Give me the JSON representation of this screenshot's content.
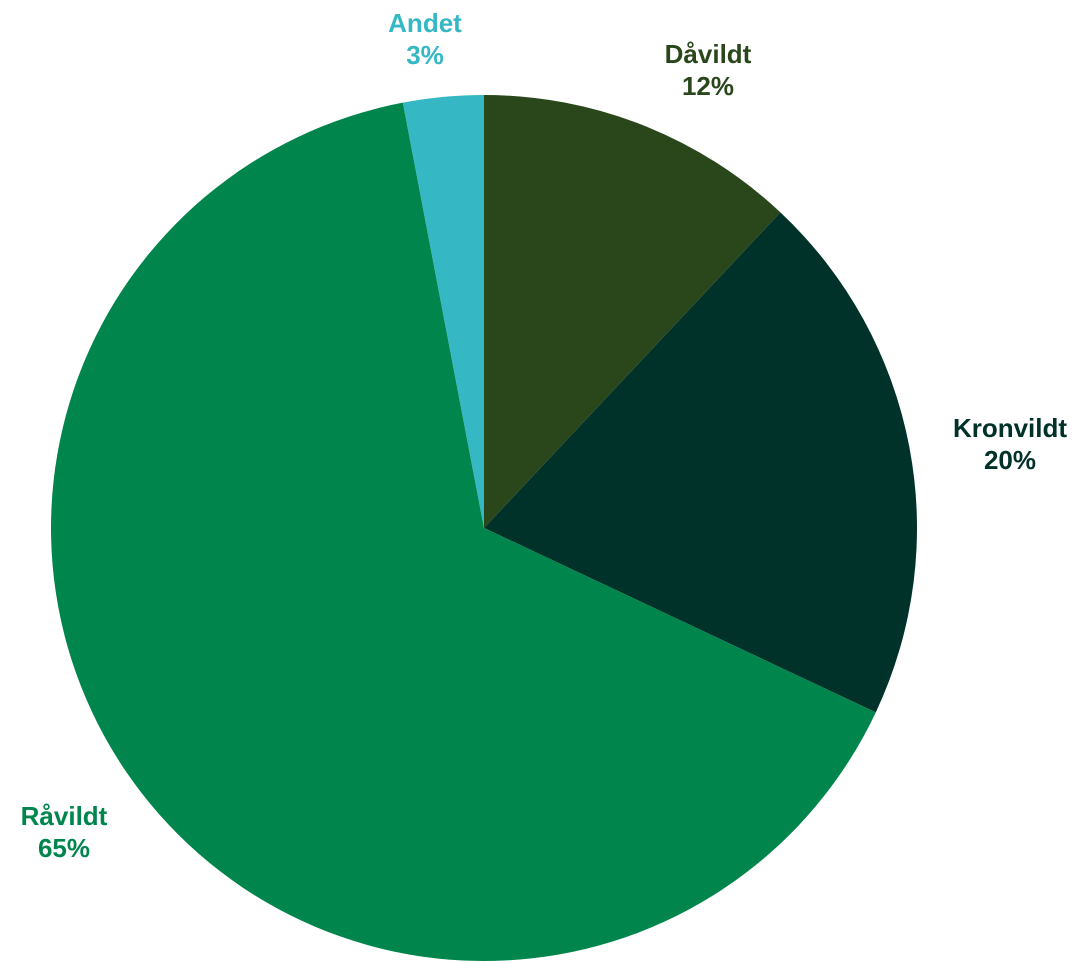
{
  "chart_data": {
    "type": "pie",
    "start_angle_deg": 0,
    "direction": "clockwise",
    "slices": [
      {
        "name": "Dåvildt",
        "value": 12,
        "label": "12%",
        "color": "#2a471c"
      },
      {
        "name": "Kronvildt",
        "value": 20,
        "label": "20%",
        "color": "#00322a"
      },
      {
        "name": "Råvildt",
        "value": 65,
        "label": "65%",
        "color": "#00854c"
      },
      {
        "name": "Andet",
        "value": 3,
        "label": "3%",
        "color": "#35b7c4"
      }
    ],
    "legend": "none",
    "data_labels": "outside, name above percentage, colored like slice"
  }
}
